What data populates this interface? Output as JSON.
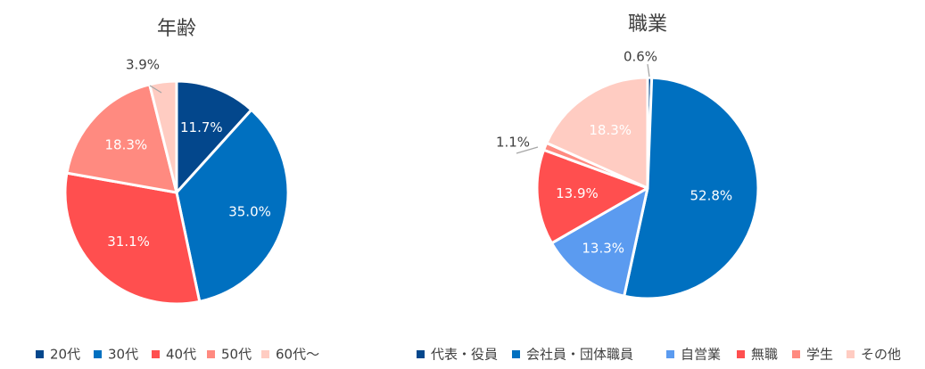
{
  "chart_data": [
    {
      "type": "pie",
      "title": "年齢",
      "categories": [
        "20代",
        "30代",
        "40代",
        "50代",
        "60代〜"
      ],
      "values": [
        11.7,
        35.0,
        31.1,
        18.3,
        3.9
      ],
      "labels": [
        "11.7%",
        "35.0%",
        "31.1%",
        "18.3%",
        "3.9%"
      ],
      "colors": [
        "#03478C",
        "#0070C0",
        "#FF4F4F",
        "#FF8A80",
        "#FFCCC2"
      ],
      "legend_position": "bottom"
    },
    {
      "type": "pie",
      "title": "職業",
      "categories": [
        "代表・役員",
        "会社員・団体職員",
        "自営業",
        "無職",
        "学生",
        "その他"
      ],
      "values": [
        0.6,
        52.8,
        13.3,
        13.9,
        1.1,
        18.3
      ],
      "labels": [
        "0.6%",
        "52.8%",
        "13.3%",
        "13.9%",
        "1.1%",
        "18.3%"
      ],
      "colors": [
        "#03478C",
        "#0070C0",
        "#5B9BF0",
        "#FF4F4F",
        "#FF8A80",
        "#FFCCC2"
      ],
      "legend_position": "bottom"
    }
  ]
}
